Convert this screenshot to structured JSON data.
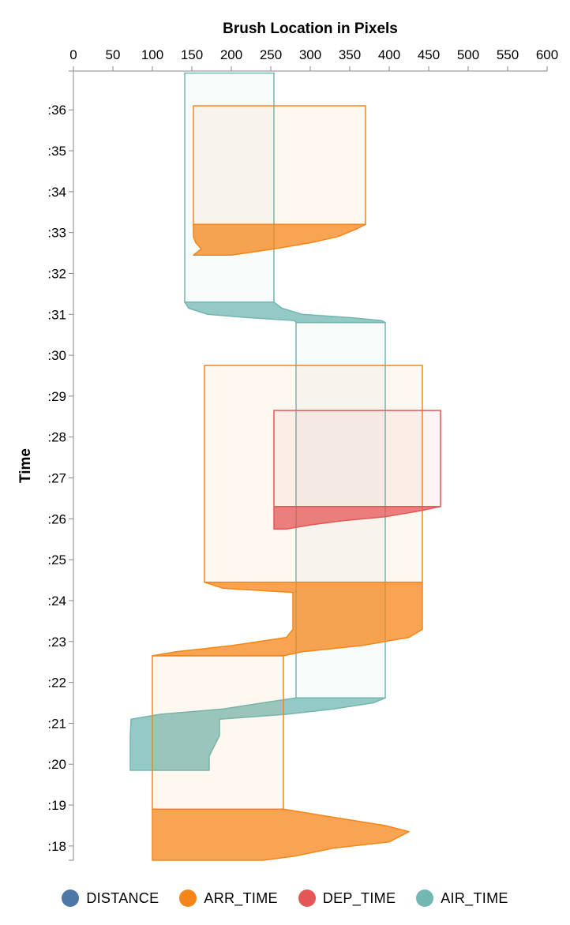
{
  "chart_data": {
    "type": "area",
    "title": "",
    "xlabel": "Brush Location in Pixels",
    "ylabel": "Time",
    "x_axis": {
      "orient": "top",
      "domain": [
        0,
        600
      ],
      "ticks": [
        0,
        50,
        100,
        150,
        200,
        250,
        300,
        350,
        400,
        450,
        500,
        550,
        600
      ]
    },
    "y_axis": {
      "domain": [
        17.65,
        36.95
      ],
      "ticks": [
        36,
        35,
        34,
        33,
        32,
        31,
        30,
        29,
        28,
        27,
        26,
        25,
        24,
        23,
        22,
        21,
        20,
        19,
        18
      ],
      "tick_labels": [
        ":36",
        ":35",
        ":34",
        ":33",
        ":32",
        ":31",
        ":30",
        ":29",
        ":28",
        ":27",
        ":26",
        ":25",
        ":24",
        ":23",
        ":22",
        ":21",
        ":20",
        ":19",
        ":18"
      ]
    },
    "grid": false,
    "legend_position": "bottom",
    "legend": [
      {
        "name": "DISTANCE",
        "color": "#4c78a8"
      },
      {
        "name": "ARR_TIME",
        "color": "#f58518"
      },
      {
        "name": "DEP_TIME",
        "color": "#e45756"
      },
      {
        "name": "AIR_TIME",
        "color": "#72b7b2"
      }
    ],
    "series": [
      {
        "name": "AIR_TIME",
        "color": "#72b7b2",
        "brushes": [
          {
            "x_left": 141,
            "x_right": 254,
            "t_top": 36.9,
            "t_settled": 31.3,
            "edge": [
              [
                31.3,
                141,
                254
              ],
              [
                31.15,
                146,
                264
              ],
              [
                31.0,
                170,
                290
              ],
              [
                30.92,
                220,
                350
              ],
              [
                30.85,
                280,
                390
              ],
              [
                30.8,
                282,
                395
              ]
            ]
          },
          {
            "x_left": 282,
            "x_right": 395,
            "t_top": 30.8,
            "t_settled": 21.62,
            "edge": [
              [
                21.62,
                282,
                395
              ],
              [
                21.5,
                240,
                380
              ],
              [
                21.35,
                190,
                330
              ],
              [
                21.22,
                110,
                270
              ],
              [
                21.1,
                73,
                185
              ],
              [
                20.7,
                72,
                185
              ],
              [
                20.2,
                72,
                172
              ],
              [
                19.85,
                72,
                172
              ]
            ]
          }
        ]
      },
      {
        "name": "ARR_TIME",
        "color": "#f58518",
        "brushes": [
          {
            "x_left": 152,
            "x_right": 370,
            "t_top": 36.1,
            "t_settled": 33.2,
            "edge": [
              [
                33.2,
                152,
                370
              ],
              [
                33.1,
                152,
                360
              ],
              [
                32.9,
                152,
                335
              ],
              [
                32.75,
                155,
                300
              ],
              [
                32.6,
                162,
                254
              ],
              [
                32.45,
                152,
                200
              ]
            ]
          },
          {
            "x_left": 166,
            "x_right": 442,
            "t_top": 29.75,
            "t_settled": 24.45,
            "edge": [
              [
                24.45,
                166,
                442
              ],
              [
                24.3,
                190,
                442
              ],
              [
                24.2,
                278,
                442
              ],
              [
                23.9,
                278,
                442
              ],
              [
                23.3,
                278,
                442
              ],
              [
                23.1,
                270,
                425
              ],
              [
                22.9,
                200,
                365
              ],
              [
                22.75,
                130,
                290
              ],
              [
                22.65,
                100,
                266
              ]
            ]
          },
          {
            "x_left": 100,
            "x_right": 266,
            "t_top": 22.65,
            "t_settled": 18.9,
            "edge": [
              [
                18.9,
                100,
                266
              ],
              [
                18.7,
                100,
                330
              ],
              [
                18.5,
                100,
                395
              ],
              [
                18.35,
                100,
                425
              ],
              [
                18.1,
                100,
                400
              ],
              [
                17.95,
                100,
                330
              ],
              [
                17.75,
                100,
                280
              ],
              [
                17.65,
                100,
                240
              ]
            ]
          }
        ]
      },
      {
        "name": "DEP_TIME",
        "color": "#e45756",
        "brushes": [
          {
            "x_left": 254,
            "x_right": 465,
            "t_top": 28.65,
            "t_settled": 26.3,
            "edge": [
              [
                26.3,
                254,
                465
              ],
              [
                26.2,
                254,
                440
              ],
              [
                26.05,
                254,
                395
              ],
              [
                25.95,
                254,
                340
              ],
              [
                25.85,
                254,
                300
              ],
              [
                25.75,
                254,
                270
              ]
            ]
          }
        ]
      }
    ]
  }
}
